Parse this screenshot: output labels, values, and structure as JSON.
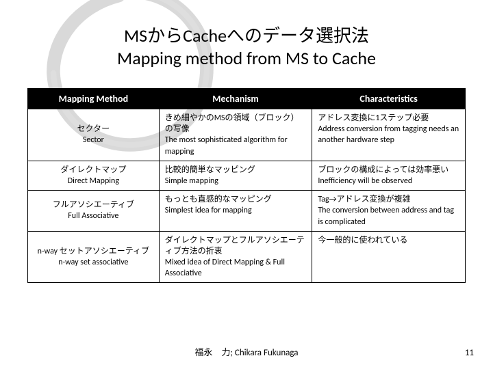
{
  "title_jp": "MSからCacheへのデータ選択法",
  "title_en": "Mapping method from MS to Cache",
  "headers": [
    "Mapping Method",
    "Mechanism",
    "Characteristics"
  ],
  "rows": [
    {
      "method_jp": "セクター",
      "method_en": "Sector",
      "mechanism": "きめ細やかのMSの領域（ブロック）の写像\nThe most sophisticated algorithm for mapping",
      "characteristics": "アドレス変換に1ステップ必要\nAddress conversion from tagging needs an another hardware step"
    },
    {
      "method_jp": "ダイレクトマップ",
      "method_en": "Direct Mapping",
      "mechanism": "比較的簡単なマッピング\nSimple mapping",
      "characteristics": "ブロックの構成によっては効率悪い\nInefficiency will be observed"
    },
    {
      "method_jp": "フルアソシエーティブ",
      "method_en": "Full Associative",
      "mechanism": "もっとも直感的なマッピング\nSimplest idea for mapping",
      "characteristics": "Tag→アドレス変換が複雑\nThe conversion between address and tag is complicated"
    },
    {
      "method_jp": "n-way セットアソシエーティブ",
      "method_en": "n-way set associative",
      "mechanism": "ダイレクトマップとフルアソシエーティブ方法の折衷\nMixed idea of Direct Mapping & Full Associative",
      "characteristics": "今一般的に使われている"
    }
  ],
  "footer": "福永　力; Chikara Fukunaga",
  "page_number": "11",
  "colors": {
    "header_bg": "#000000",
    "header_fg": "#ffffff",
    "border": "#000000",
    "text": "#000000",
    "bg": "#ffffff",
    "enso_stroke": "#6b6b6b"
  },
  "fonts": {
    "title_size": 26,
    "header_size": 14,
    "cell_size": 12,
    "footer_size": 13
  }
}
